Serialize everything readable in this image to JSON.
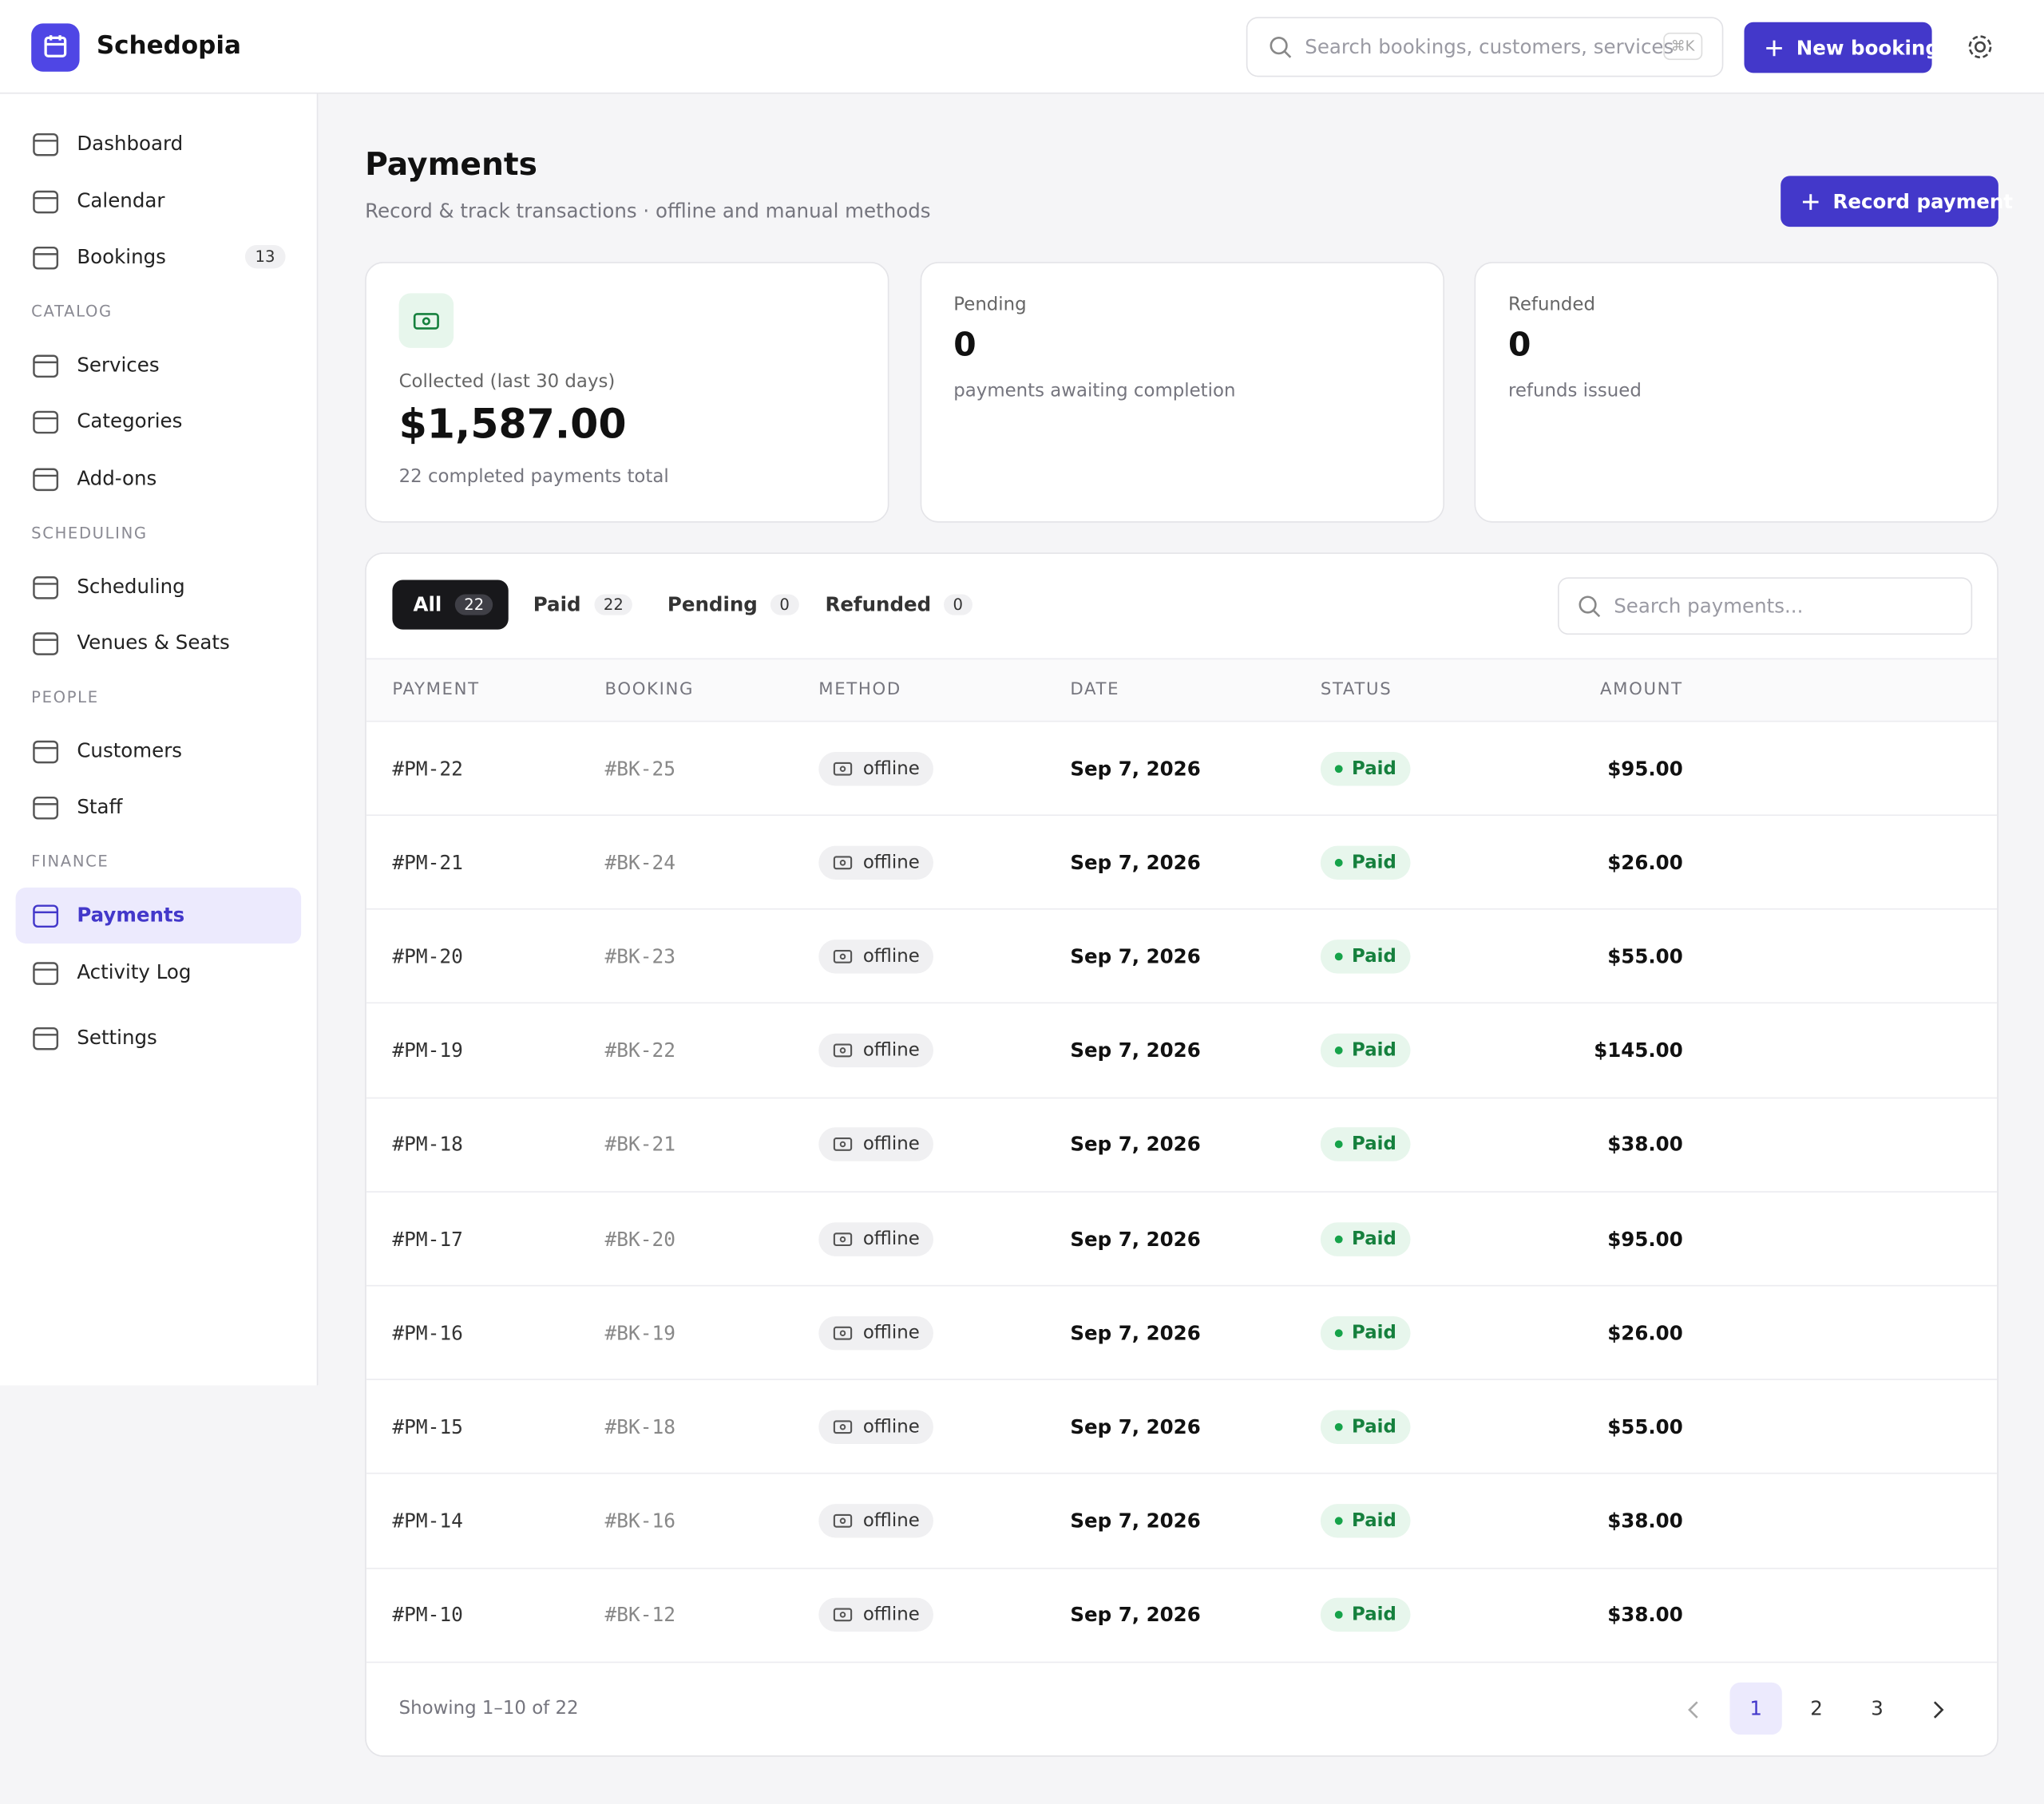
{
  "header": {
    "brand": "Schedopia",
    "search_placeholder": "Search bookings, customers, services",
    "shortcut": "⌘K",
    "new_booking": "New booking"
  },
  "sidebar": [
    {
      "section": null,
      "items": [
        {
          "label": "Dashboard"
        },
        {
          "label": "Calendar"
        },
        {
          "label": "Bookings",
          "badge": 13
        }
      ]
    },
    {
      "section": "CATALOG",
      "items": [
        {
          "label": "Services"
        },
        {
          "label": "Categories"
        },
        {
          "label": "Add-ons"
        }
      ]
    },
    {
      "section": "SCHEDULING",
      "items": [
        {
          "label": "Scheduling"
        },
        {
          "label": "Venues & Seats"
        }
      ]
    },
    {
      "section": "PEOPLE",
      "items": [
        {
          "label": "Customers"
        },
        {
          "label": "Staff"
        }
      ]
    },
    {
      "section": "FINANCE",
      "items": [
        {
          "label": "Payments",
          "active": true
        },
        {
          "label": "Activity Log"
        }
      ]
    },
    {
      "section": null,
      "items": [
        {
          "label": "Settings"
        }
      ]
    }
  ],
  "page": {
    "title": "Payments",
    "subtitle": "Record & track transactions · offline and manual methods",
    "action": "Record payment"
  },
  "stats": [
    {
      "label": "Collected (last 30 days)",
      "value": "$1,587.00",
      "note": "22 completed payments total"
    },
    {
      "label": "Pending",
      "value": "0",
      "note": "payments awaiting completion"
    },
    {
      "label": "Refunded",
      "value": "0",
      "note": "refunds issued"
    }
  ],
  "tabs": [
    {
      "label": "All",
      "count": 22,
      "active": true
    },
    {
      "label": "Paid",
      "count": 22
    },
    {
      "label": "Pending",
      "count": 0
    },
    {
      "label": "Refunded",
      "count": 0
    }
  ],
  "table": {
    "search_placeholder": "Search payments...",
    "columns": [
      "PAYMENT",
      "BOOKING",
      "METHOD",
      "DATE",
      "STATUS",
      "AMOUNT"
    ],
    "rows": [
      [
        "#PM-22",
        "#BK-25",
        "offline",
        "Sep 7, 2026",
        "Paid",
        "$95.00"
      ],
      [
        "#PM-21",
        "#BK-24",
        "offline",
        "Sep 7, 2026",
        "Paid",
        "$26.00"
      ],
      [
        "#PM-20",
        "#BK-23",
        "offline",
        "Sep 7, 2026",
        "Paid",
        "$55.00"
      ],
      [
        "#PM-19",
        "#BK-22",
        "offline",
        "Sep 7, 2026",
        "Paid",
        "$145.00"
      ],
      [
        "#PM-18",
        "#BK-21",
        "offline",
        "Sep 7, 2026",
        "Paid",
        "$38.00"
      ],
      [
        "#PM-17",
        "#BK-20",
        "offline",
        "Sep 7, 2026",
        "Paid",
        "$95.00"
      ],
      [
        "#PM-16",
        "#BK-19",
        "offline",
        "Sep 7, 2026",
        "Paid",
        "$26.00"
      ],
      [
        "#PM-15",
        "#BK-18",
        "offline",
        "Sep 7, 2026",
        "Paid",
        "$55.00"
      ],
      [
        "#PM-14",
        "#BK-16",
        "offline",
        "Sep 7, 2026",
        "Paid",
        "$38.00"
      ],
      [
        "#PM-10",
        "#BK-12",
        "offline",
        "Sep 7, 2026",
        "Paid",
        "$38.00"
      ]
    ]
  },
  "footer": {
    "showing": "Showing 1–10 of 22",
    "pages": [
      "1",
      "2",
      "3"
    ]
  }
}
